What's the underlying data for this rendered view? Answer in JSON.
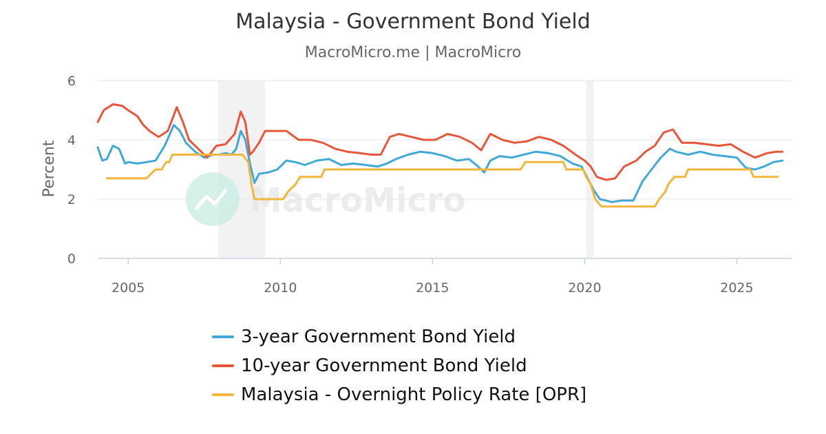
{
  "chart_data": {
    "type": "line",
    "title": "Malaysia - Government Bond Yield",
    "subtitle": "MacroMicro.me | MacroMicro",
    "ylabel": "Percent",
    "ylim": [
      0,
      6
    ],
    "yticks": [
      0,
      2,
      4,
      6
    ],
    "xlim": [
      2004.0,
      2026.8
    ],
    "xticks": [
      2005,
      2010,
      2015,
      2020,
      2025
    ],
    "grid": true,
    "legend_position": "bottom",
    "watermark": "MacroMicro",
    "shaded_periods": [
      [
        2007.95,
        2009.5
      ],
      [
        2020.05,
        2020.3
      ]
    ],
    "series": [
      {
        "name": "3-year Government Bond Yield",
        "color": "#3fa8d8",
        "points": [
          [
            2004.0,
            3.75
          ],
          [
            2004.15,
            3.3
          ],
          [
            2004.3,
            3.35
          ],
          [
            2004.5,
            3.8
          ],
          [
            2004.7,
            3.7
          ],
          [
            2004.9,
            3.2
          ],
          [
            2005.0,
            3.25
          ],
          [
            2005.3,
            3.2
          ],
          [
            2005.6,
            3.25
          ],
          [
            2005.9,
            3.3
          ],
          [
            2006.2,
            3.8
          ],
          [
            2006.5,
            4.5
          ],
          [
            2006.7,
            4.3
          ],
          [
            2006.9,
            3.9
          ],
          [
            2007.2,
            3.6
          ],
          [
            2007.5,
            3.4
          ],
          [
            2007.8,
            3.5
          ],
          [
            2008.0,
            3.5
          ],
          [
            2008.2,
            3.55
          ],
          [
            2008.4,
            3.5
          ],
          [
            2008.55,
            3.7
          ],
          [
            2008.7,
            4.3
          ],
          [
            2008.85,
            4.0
          ],
          [
            2009.0,
            3.2
          ],
          [
            2009.15,
            2.55
          ],
          [
            2009.3,
            2.85
          ],
          [
            2009.6,
            2.9
          ],
          [
            2009.9,
            3.0
          ],
          [
            2010.2,
            3.3
          ],
          [
            2010.5,
            3.25
          ],
          [
            2010.8,
            3.15
          ],
          [
            2011.2,
            3.3
          ],
          [
            2011.6,
            3.35
          ],
          [
            2012.0,
            3.15
          ],
          [
            2012.4,
            3.2
          ],
          [
            2012.8,
            3.15
          ],
          [
            2013.2,
            3.1
          ],
          [
            2013.5,
            3.2
          ],
          [
            2013.8,
            3.35
          ],
          [
            2014.2,
            3.5
          ],
          [
            2014.6,
            3.6
          ],
          [
            2015.0,
            3.55
          ],
          [
            2015.4,
            3.45
          ],
          [
            2015.8,
            3.3
          ],
          [
            2016.2,
            3.35
          ],
          [
            2016.5,
            3.1
          ],
          [
            2016.7,
            2.9
          ],
          [
            2016.9,
            3.3
          ],
          [
            2017.2,
            3.45
          ],
          [
            2017.6,
            3.4
          ],
          [
            2018.0,
            3.5
          ],
          [
            2018.4,
            3.6
          ],
          [
            2018.8,
            3.55
          ],
          [
            2019.2,
            3.45
          ],
          [
            2019.6,
            3.2
          ],
          [
            2019.9,
            3.1
          ],
          [
            2020.1,
            2.7
          ],
          [
            2020.3,
            2.3
          ],
          [
            2020.5,
            2.0
          ],
          [
            2020.9,
            1.9
          ],
          [
            2021.2,
            1.95
          ],
          [
            2021.6,
            1.95
          ],
          [
            2021.9,
            2.6
          ],
          [
            2022.2,
            3.0
          ],
          [
            2022.5,
            3.4
          ],
          [
            2022.8,
            3.7
          ],
          [
            2023.0,
            3.6
          ],
          [
            2023.4,
            3.5
          ],
          [
            2023.8,
            3.6
          ],
          [
            2024.2,
            3.5
          ],
          [
            2024.6,
            3.45
          ],
          [
            2025.0,
            3.4
          ],
          [
            2025.3,
            3.05
          ],
          [
            2025.6,
            3.0
          ],
          [
            2025.9,
            3.1
          ],
          [
            2026.2,
            3.25
          ],
          [
            2026.5,
            3.3
          ]
        ]
      },
      {
        "name": "10-year Government Bond Yield",
        "color": "#e8563a",
        "points": [
          [
            2004.0,
            4.6
          ],
          [
            2004.2,
            5.0
          ],
          [
            2004.5,
            5.2
          ],
          [
            2004.8,
            5.15
          ],
          [
            2005.0,
            5.0
          ],
          [
            2005.3,
            4.8
          ],
          [
            2005.5,
            4.5
          ],
          [
            2005.7,
            4.3
          ],
          [
            2006.0,
            4.1
          ],
          [
            2006.3,
            4.3
          ],
          [
            2006.6,
            5.1
          ],
          [
            2006.8,
            4.6
          ],
          [
            2007.0,
            4.0
          ],
          [
            2007.3,
            3.7
          ],
          [
            2007.6,
            3.4
          ],
          [
            2007.9,
            3.8
          ],
          [
            2008.2,
            3.85
          ],
          [
            2008.5,
            4.2
          ],
          [
            2008.7,
            4.95
          ],
          [
            2008.85,
            4.6
          ],
          [
            2009.0,
            3.5
          ],
          [
            2009.1,
            3.6
          ],
          [
            2009.3,
            3.9
          ],
          [
            2009.5,
            4.3
          ],
          [
            2009.8,
            4.3
          ],
          [
            2010.2,
            4.3
          ],
          [
            2010.6,
            4.0
          ],
          [
            2011.0,
            4.0
          ],
          [
            2011.4,
            3.9
          ],
          [
            2011.8,
            3.7
          ],
          [
            2012.2,
            3.6
          ],
          [
            2012.6,
            3.55
          ],
          [
            2013.0,
            3.5
          ],
          [
            2013.3,
            3.5
          ],
          [
            2013.6,
            4.1
          ],
          [
            2013.9,
            4.2
          ],
          [
            2014.3,
            4.1
          ],
          [
            2014.7,
            4.0
          ],
          [
            2015.1,
            4.0
          ],
          [
            2015.5,
            4.2
          ],
          [
            2015.9,
            4.1
          ],
          [
            2016.3,
            3.9
          ],
          [
            2016.6,
            3.65
          ],
          [
            2016.9,
            4.2
          ],
          [
            2017.3,
            4.0
          ],
          [
            2017.7,
            3.9
          ],
          [
            2018.1,
            3.95
          ],
          [
            2018.5,
            4.1
          ],
          [
            2018.9,
            4.0
          ],
          [
            2019.3,
            3.8
          ],
          [
            2019.7,
            3.5
          ],
          [
            2020.0,
            3.3
          ],
          [
            2020.2,
            3.1
          ],
          [
            2020.4,
            2.75
          ],
          [
            2020.7,
            2.65
          ],
          [
            2021.0,
            2.7
          ],
          [
            2021.3,
            3.1
          ],
          [
            2021.7,
            3.3
          ],
          [
            2022.0,
            3.6
          ],
          [
            2022.3,
            3.8
          ],
          [
            2022.6,
            4.25
          ],
          [
            2022.9,
            4.35
          ],
          [
            2023.2,
            3.9
          ],
          [
            2023.6,
            3.9
          ],
          [
            2024.0,
            3.85
          ],
          [
            2024.4,
            3.8
          ],
          [
            2024.8,
            3.85
          ],
          [
            2025.2,
            3.6
          ],
          [
            2025.6,
            3.4
          ],
          [
            2026.0,
            3.55
          ],
          [
            2026.3,
            3.6
          ],
          [
            2026.5,
            3.6
          ]
        ]
      },
      {
        "name": "Malaysia - Overnight Policy Rate [OPR]",
        "color": "#f3b53b",
        "points": [
          [
            2004.3,
            2.7
          ],
          [
            2005.6,
            2.7
          ],
          [
            2005.9,
            3.0
          ],
          [
            2006.1,
            3.0
          ],
          [
            2006.25,
            3.25
          ],
          [
            2006.35,
            3.25
          ],
          [
            2006.45,
            3.5
          ],
          [
            2008.75,
            3.5
          ],
          [
            2008.95,
            3.25
          ],
          [
            2009.05,
            2.5
          ],
          [
            2009.15,
            2.0
          ],
          [
            2010.1,
            2.0
          ],
          [
            2010.25,
            2.25
          ],
          [
            2010.5,
            2.5
          ],
          [
            2010.65,
            2.75
          ],
          [
            2011.35,
            2.75
          ],
          [
            2011.45,
            3.0
          ],
          [
            2016.6,
            3.0
          ],
          [
            2016.7,
            3.0
          ],
          [
            2017.9,
            3.0
          ],
          [
            2018.05,
            3.25
          ],
          [
            2019.3,
            3.25
          ],
          [
            2019.4,
            3.0
          ],
          [
            2019.95,
            3.0
          ],
          [
            2020.05,
            2.75
          ],
          [
            2020.2,
            2.5
          ],
          [
            2020.35,
            2.0
          ],
          [
            2020.55,
            1.75
          ],
          [
            2022.3,
            1.75
          ],
          [
            2022.45,
            2.0
          ],
          [
            2022.65,
            2.25
          ],
          [
            2022.75,
            2.5
          ],
          [
            2022.95,
            2.75
          ],
          [
            2023.3,
            2.75
          ],
          [
            2023.4,
            3.0
          ],
          [
            2025.45,
            3.0
          ],
          [
            2025.55,
            2.75
          ],
          [
            2026.35,
            2.75
          ]
        ]
      }
    ]
  }
}
